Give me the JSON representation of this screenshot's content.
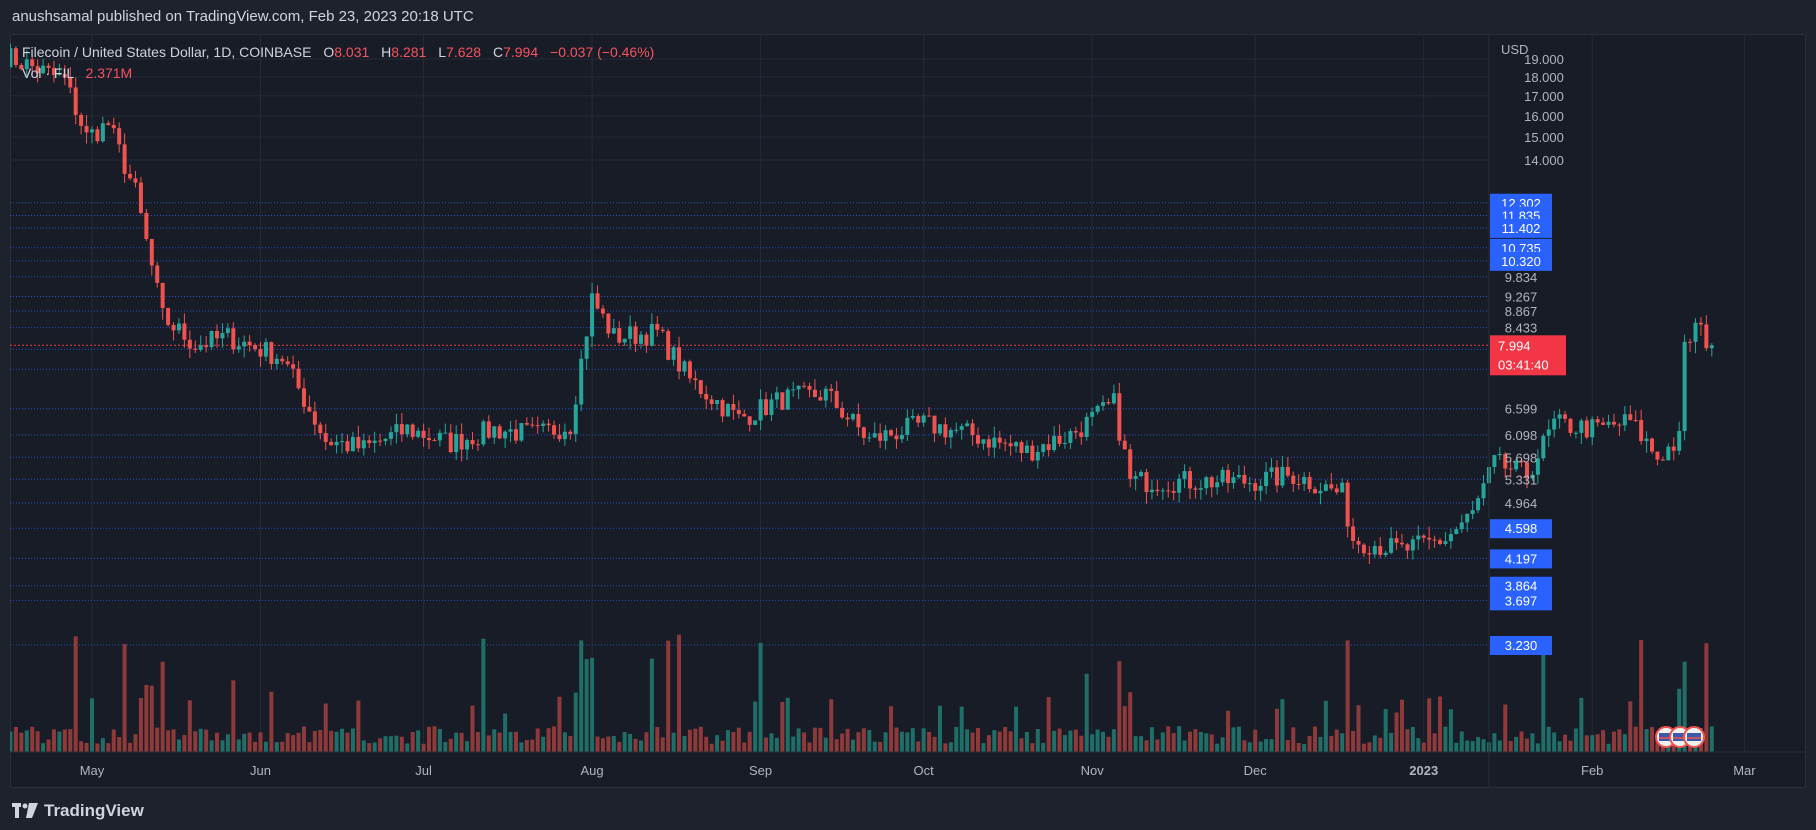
{
  "header": {
    "published_line": "anushsamal published on TradingView.com, Feb 23, 2023 20:18 UTC"
  },
  "legend": {
    "symbol": "Filecoin / United States Dollar, 1D, COINBASE",
    "o_label": "O",
    "o_value": "8.031",
    "h_label": "H",
    "h_value": "8.281",
    "l_label": "L",
    "l_value": "7.628",
    "c_label": "C",
    "c_value": "7.994",
    "change": "−0.037 (−0.46%)",
    "vol_label": "Vol · FIL",
    "vol_value": "2.371M"
  },
  "footer": {
    "brand": "TradingView"
  },
  "colors": {
    "up": "#26a69a",
    "down": "#ef5350",
    "up_vol": "#1f6f68",
    "down_vol": "#8e3a3a",
    "level_line": "#2962ff",
    "price_tag": "#f23645",
    "level_tag": "#2962ff"
  },
  "chart_data": {
    "type": "candlestick",
    "title": "Filecoin / United States Dollar, 1D, COINBASE",
    "currency_label": "USD",
    "y_axis_ticks": [
      "19.000",
      "18.000",
      "17.000",
      "16.000",
      "15.000",
      "14.000"
    ],
    "x_axis_labels": [
      "May",
      "Jun",
      "Jul",
      "Aug",
      "Sep",
      "Oct",
      "Nov",
      "Dec",
      "2023",
      "Feb",
      "Mar"
    ],
    "level_labels": [
      "12.302",
      "11.835",
      "11.402",
      "10.735",
      "10.320",
      "9.834",
      "9.267",
      "8.867",
      "8.433",
      "7.900",
      "7.433",
      "6.599",
      "6.098",
      "5.698",
      "5.331",
      "4.964",
      "4.598",
      "4.197",
      "3.864",
      "3.697",
      "3.230"
    ],
    "last_price": "7.994",
    "countdown": "03:41:40",
    "scale": "log",
    "anchor_points": [
      [
        "2022-04-15",
        19.2
      ],
      [
        "2022-04-26",
        17.8
      ],
      [
        "2022-04-30",
        15.0
      ],
      [
        "2022-05-04",
        15.6
      ],
      [
        "2022-05-09",
        12.7
      ],
      [
        "2022-05-14",
        8.7
      ],
      [
        "2022-05-20",
        8.0
      ],
      [
        "2022-05-26",
        8.2
      ],
      [
        "2022-06-05",
        7.7
      ],
      [
        "2022-06-13",
        6.0
      ],
      [
        "2022-06-20",
        5.85
      ],
      [
        "2022-06-28",
        6.2
      ],
      [
        "2022-07-06",
        5.95
      ],
      [
        "2022-07-14",
        6.2
      ],
      [
        "2022-07-22",
        6.1
      ],
      [
        "2022-07-28",
        6.3
      ],
      [
        "2022-08-01",
        9.2
      ],
      [
        "2022-08-05",
        8.2
      ],
      [
        "2022-08-13",
        8.3
      ],
      [
        "2022-08-19",
        7.2
      ],
      [
        "2022-08-28",
        6.4
      ],
      [
        "2022-09-05",
        6.8
      ],
      [
        "2022-09-13",
        6.9
      ],
      [
        "2022-09-21",
        6.0
      ],
      [
        "2022-10-01",
        6.3
      ],
      [
        "2022-10-10",
        6.1
      ],
      [
        "2022-10-20",
        5.8
      ],
      [
        "2022-10-28",
        6.1
      ],
      [
        "2022-11-05",
        6.7
      ],
      [
        "2022-11-08",
        5.3
      ],
      [
        "2022-11-20",
        5.3
      ],
      [
        "2022-11-30",
        5.3
      ],
      [
        "2022-12-08",
        5.4
      ],
      [
        "2022-12-17",
        5.1
      ],
      [
        "2022-12-19",
        4.45
      ],
      [
        "2022-12-28",
        4.3
      ],
      [
        "2023-01-05",
        4.45
      ],
      [
        "2023-01-10",
        4.8
      ],
      [
        "2023-01-14",
        5.6
      ],
      [
        "2023-01-20",
        5.4
      ],
      [
        "2023-01-25",
        6.3
      ],
      [
        "2023-02-02",
        6.2
      ],
      [
        "2023-02-08",
        6.35
      ],
      [
        "2023-02-13",
        5.7
      ],
      [
        "2023-02-17",
        6.0
      ],
      [
        "2023-02-18",
        7.9
      ],
      [
        "2023-02-20",
        8.45
      ],
      [
        "2023-02-23",
        7.994
      ]
    ]
  }
}
